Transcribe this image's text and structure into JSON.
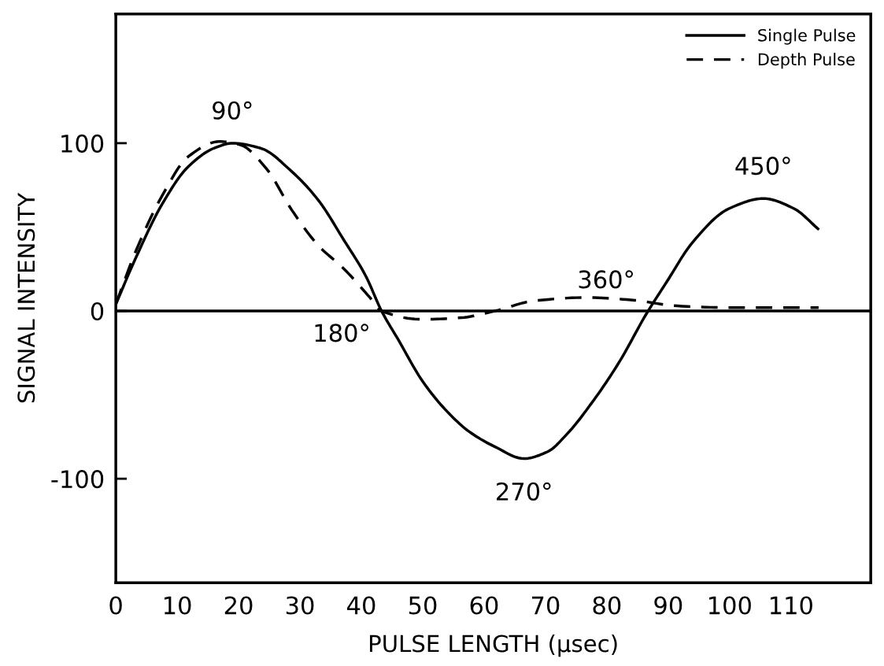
{
  "chart_data": {
    "type": "line",
    "xlabel": "PULSE LENGTH (μsec)",
    "ylabel": "SIGNAL INTENSITY",
    "xlim": [
      0,
      123
    ],
    "xticks": [
      0,
      10,
      20,
      30,
      40,
      50,
      60,
      70,
      80,
      90,
      100,
      110
    ],
    "ylim": [
      -162,
      177
    ],
    "yticks": [
      -100,
      0,
      100
    ],
    "legend": "top right",
    "grid": false,
    "ref_lines": [
      {
        "axis": "y",
        "value": 0,
        "color": "#000000",
        "line_style": "solid"
      }
    ],
    "series": [
      {
        "name": "Single Pulse",
        "color": "#000000",
        "line_style": "solid",
        "x": [
          0,
          3.3,
          7.6,
          11.8,
          16,
          19,
          23.6,
          28.7,
          33,
          37.2,
          40.7,
          43.3,
          46,
          50,
          54,
          57.6,
          61.8,
          66.5,
          70.3,
          73.6,
          77.9,
          82.1,
          86.4,
          89.7,
          94,
          99.9,
          105.5,
          110.5,
          114.4
        ],
        "values": [
          4,
          32,
          64,
          86,
          97,
          100,
          97,
          83,
          66,
          42,
          21,
          0,
          -17,
          -42,
          -60,
          -72,
          -81,
          -88,
          -84,
          -73,
          -53,
          -30,
          -2,
          17,
          41,
          61,
          67,
          61,
          49
        ]
      },
      {
        "name": "Depth Pulse",
        "color": "#000000",
        "line_style": "dashed",
        "x": [
          0,
          3.3,
          7.6,
          11.8,
          16.9,
          20.3,
          24.5,
          28.7,
          33,
          37.2,
          41.4,
          43.3,
          49.9,
          56.3,
          61.8,
          68.1,
          76.6,
          83.9,
          91.5,
          99.9,
          114.5
        ],
        "values": [
          4,
          36,
          69,
          92,
          101,
          99,
          85,
          60,
          39,
          25,
          8,
          0,
          -5,
          -4,
          0,
          6,
          8,
          6.6,
          3,
          2,
          2
        ]
      }
    ],
    "annotations": [
      {
        "text": "90°",
        "x": 19,
        "y": 100
      },
      {
        "text": "180°",
        "x": 43.3,
        "y": 0
      },
      {
        "text": "270°",
        "x": 66.5,
        "y": -88
      },
      {
        "text": "360°",
        "x": 86.4,
        "y": -2
      },
      {
        "text": "450°",
        "x": 105.5,
        "y": 67
      }
    ]
  }
}
